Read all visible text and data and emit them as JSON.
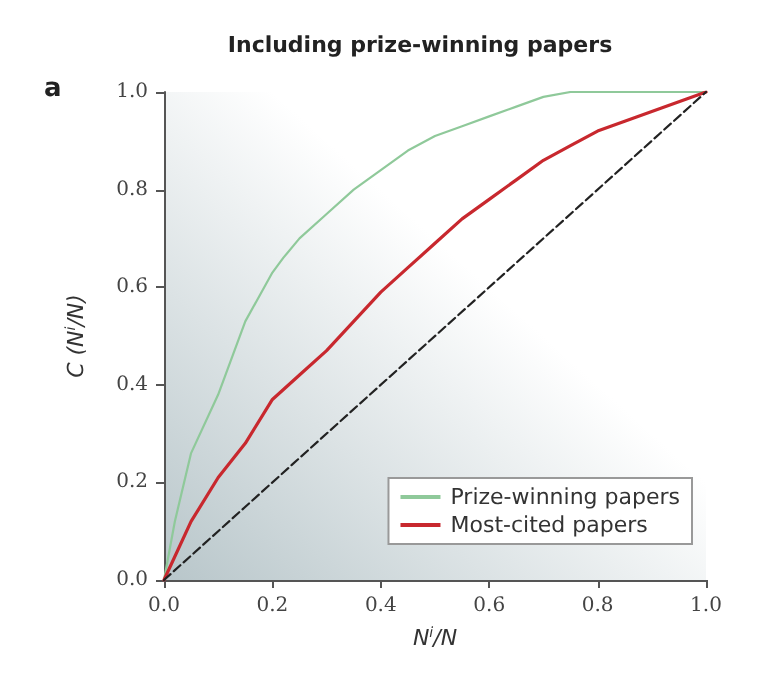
{
  "chart_data": {
    "type": "line",
    "title": "Including prize-winning papers",
    "annotations": [
      "a"
    ],
    "xlabel": "N$^{i}$/N",
    "ylabel": "C (N$^{i}$/N)",
    "xlim": [
      0,
      1
    ],
    "ylim": [
      0,
      1
    ],
    "xticks": [
      {
        "value": 0,
        "label": "0.0"
      },
      {
        "value": 0.2,
        "label": "0.2"
      },
      {
        "value": 0.4,
        "label": "0.4"
      },
      {
        "value": 0.6,
        "label": "0.6"
      },
      {
        "value": 0.8,
        "label": "0.8"
      },
      {
        "value": 1,
        "label": "1.0"
      }
    ],
    "yticks": [
      {
        "value": 0,
        "label": "0.0"
      },
      0.2,
      0.4,
      0.6,
      0.8,
      {
        "value": 1,
        "label": "1.0"
      }
    ],
    "series": [
      {
        "name": "Prize-winning papers",
        "color": "#8fc99a",
        "x": [
          0,
          0.02,
          0.05,
          0.1,
          0.15,
          0.2,
          0.22,
          0.25,
          0.3,
          0.35,
          0.4,
          0.45,
          0.5,
          0.55,
          0.6,
          0.65,
          0.7,
          0.75,
          1
        ],
        "values": [
          0,
          0.12,
          0.26,
          0.38,
          0.53,
          0.63,
          0.66,
          0.7,
          0.75,
          0.8,
          0.84,
          0.88,
          0.91,
          0.93,
          0.95,
          0.97,
          0.99,
          1,
          1
        ]
      },
      {
        "name": "Most-cited papers",
        "color": "#c8282e",
        "x": [
          0,
          0.05,
          0.1,
          0.15,
          0.2,
          0.25,
          0.3,
          0.35,
          0.4,
          0.45,
          0.5,
          0.55,
          0.6,
          0.65,
          0.7,
          0.75,
          0.8,
          0.85,
          0.9,
          0.95,
          1
        ],
        "values": [
          0,
          0.12,
          0.21,
          0.28,
          0.37,
          0.42,
          0.47,
          0.53,
          0.59,
          0.64,
          0.69,
          0.74,
          0.78,
          0.82,
          0.86,
          0.89,
          0.92,
          0.94,
          0.96,
          0.98,
          1
        ]
      },
      {
        "color": "#222222",
        "line_style": "dashed",
        "x": [
          0,
          1
        ],
        "values": [
          0,
          1
        ]
      }
    ],
    "legend": "bottom right",
    "grid": false,
    "marker": "none"
  }
}
